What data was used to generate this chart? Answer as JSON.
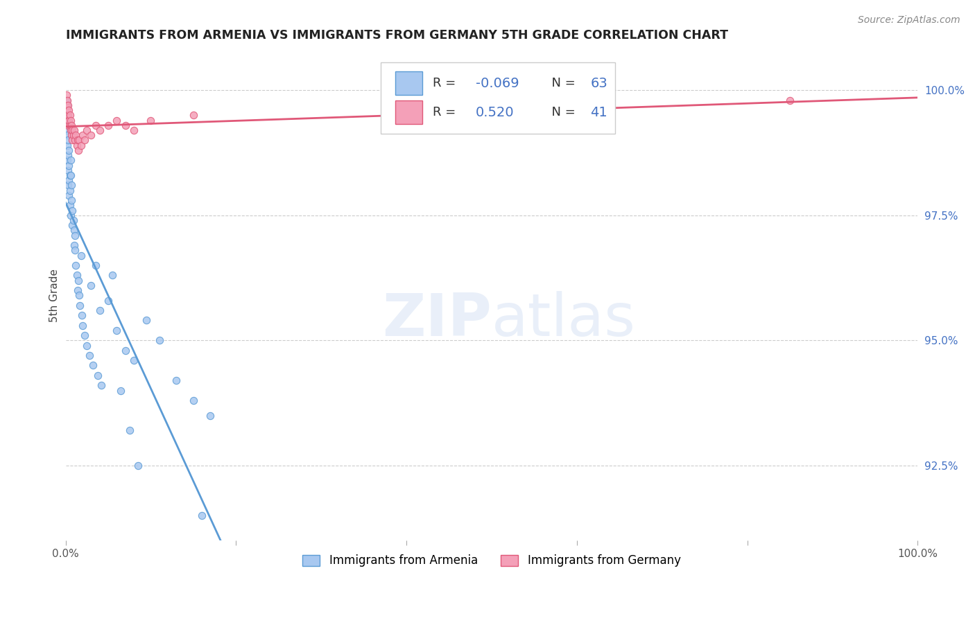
{
  "title": "IMMIGRANTS FROM ARMENIA VS IMMIGRANTS FROM GERMANY 5TH GRADE CORRELATION CHART",
  "source": "Source: ZipAtlas.com",
  "ylabel": "5th Grade",
  "yticks": [
    92.5,
    95.0,
    97.5,
    100.0
  ],
  "ytick_labels": [
    "92.5%",
    "95.0%",
    "97.5%",
    "100.0%"
  ],
  "xlim": [
    0.0,
    1.0
  ],
  "ylim": [
    91.0,
    100.8
  ],
  "legend_armenia": "Immigrants from Armenia",
  "legend_germany": "Immigrants from Germany",
  "R_armenia": -0.069,
  "N_armenia": 63,
  "R_germany": 0.52,
  "N_germany": 41,
  "color_armenia": "#a8c8f0",
  "color_germany": "#f4a0b8",
  "color_line_armenia": "#5b9bd5",
  "color_line_germany": "#e05878",
  "color_blue_text": "#4472c4",
  "armenia_x": [
    0.001,
    0.001,
    0.001,
    0.002,
    0.002,
    0.002,
    0.002,
    0.002,
    0.003,
    0.003,
    0.003,
    0.003,
    0.004,
    0.004,
    0.004,
    0.004,
    0.005,
    0.005,
    0.005,
    0.006,
    0.006,
    0.006,
    0.007,
    0.007,
    0.008,
    0.008,
    0.009,
    0.01,
    0.01,
    0.011,
    0.011,
    0.012,
    0.013,
    0.014,
    0.015,
    0.016,
    0.017,
    0.018,
    0.019,
    0.02,
    0.022,
    0.025,
    0.028,
    0.032,
    0.035,
    0.038,
    0.042,
    0.05,
    0.06,
    0.07,
    0.08,
    0.095,
    0.11,
    0.13,
    0.15,
    0.17,
    0.03,
    0.04,
    0.055,
    0.065,
    0.075,
    0.085,
    0.16
  ],
  "armenia_y": [
    99.8,
    99.5,
    99.2,
    99.7,
    99.4,
    99.1,
    98.9,
    98.6,
    99.0,
    98.7,
    98.4,
    98.1,
    98.8,
    98.5,
    98.2,
    97.9,
    98.3,
    98.0,
    97.7,
    98.6,
    98.3,
    97.5,
    98.1,
    97.8,
    97.6,
    97.3,
    97.4,
    97.2,
    96.9,
    97.1,
    96.8,
    96.5,
    96.3,
    96.0,
    96.2,
    95.9,
    95.7,
    96.7,
    95.5,
    95.3,
    95.1,
    94.9,
    94.7,
    94.5,
    96.5,
    94.3,
    94.1,
    95.8,
    95.2,
    94.8,
    94.6,
    95.4,
    95.0,
    94.2,
    93.8,
    93.5,
    96.1,
    95.6,
    96.3,
    94.0,
    93.2,
    92.5,
    91.5
  ],
  "germany_x": [
    0.001,
    0.001,
    0.001,
    0.002,
    0.002,
    0.002,
    0.003,
    0.003,
    0.003,
    0.004,
    0.004,
    0.005,
    0.005,
    0.006,
    0.006,
    0.007,
    0.007,
    0.008,
    0.008,
    0.009,
    0.01,
    0.011,
    0.012,
    0.013,
    0.014,
    0.015,
    0.016,
    0.018,
    0.02,
    0.022,
    0.025,
    0.03,
    0.035,
    0.04,
    0.05,
    0.06,
    0.07,
    0.08,
    0.1,
    0.15,
    0.85
  ],
  "germany_y": [
    99.9,
    99.7,
    99.5,
    99.8,
    99.6,
    99.4,
    99.7,
    99.5,
    99.3,
    99.6,
    99.4,
    99.5,
    99.3,
    99.4,
    99.2,
    99.3,
    99.1,
    99.2,
    99.0,
    99.1,
    99.2,
    99.0,
    99.1,
    98.9,
    99.0,
    98.8,
    99.0,
    98.9,
    99.1,
    99.0,
    99.2,
    99.1,
    99.3,
    99.2,
    99.3,
    99.4,
    99.3,
    99.2,
    99.4,
    99.5,
    99.8
  ]
}
